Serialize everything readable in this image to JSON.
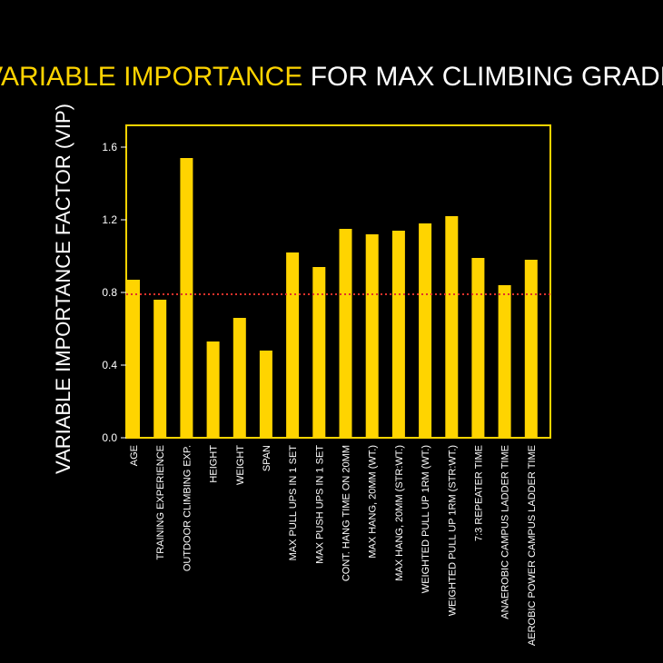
{
  "colors": {
    "background": "#000000",
    "accent": "#FFD400",
    "text": "#FFFFFF",
    "reference_line": "#E0322B"
  },
  "chart_data": {
    "type": "bar",
    "title_highlight": "VARIABLE IMPORTANCE",
    "title_rest": "FOR MAX CLIMBING GRADE",
    "xlabel": "",
    "ylabel": "VARIABLE IMPORTANCE FACTOR (VIP)",
    "ylim": [
      0,
      1.72
    ],
    "yticks": [
      0.0,
      0.4,
      0.8,
      1.2,
      1.6
    ],
    "ytick_labels": [
      "0.0",
      "0.4",
      "0.8",
      "1.2",
      "1.6"
    ],
    "grid": false,
    "reference_line": {
      "y": 0.79,
      "style": "dotted"
    },
    "categories": [
      "AGE",
      "TRAINING EXPERIENCE",
      "OUTDOOR CLIMBING EXP.",
      "HEIGHT",
      "WEIGHT",
      "SPAN",
      "MAX PULL UPS IN 1 SET",
      "MAX PUSH UPS IN 1 SET",
      "CONT. HANG TIME ON 20MM",
      "MAX HANG,  20MM  (WT.)",
      "MAX HANG, 20MM  (STR:WT.)",
      "WEIGHTED PULL UP 1RM (WT.)",
      "WEIGHTED PULL UP 1RM (STR:WT.)",
      "7:3 REPEATER TIME",
      "ANAEROBIC CAMPUS LADDER TIME",
      "AEROBIC  POWER CAMPUS LADDER TIME"
    ],
    "values": [
      0.87,
      0.76,
      1.54,
      0.53,
      0.66,
      0.48,
      1.02,
      0.94,
      1.15,
      1.12,
      1.14,
      1.18,
      1.22,
      0.99,
      0.84,
      0.98
    ]
  }
}
